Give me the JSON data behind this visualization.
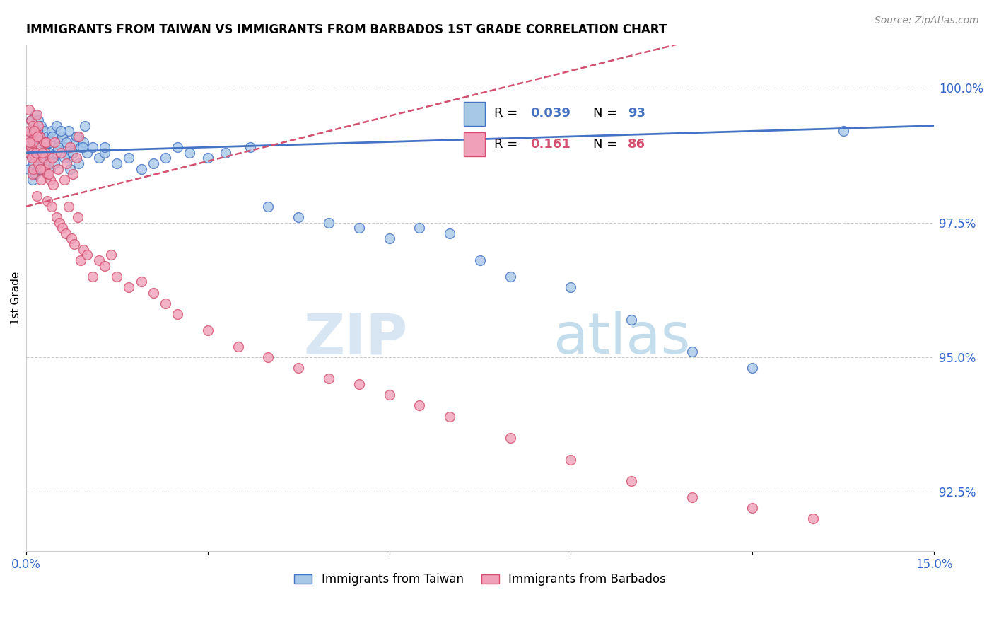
{
  "title": "IMMIGRANTS FROM TAIWAN VS IMMIGRANTS FROM BARBADOS 1ST GRADE CORRELATION CHART",
  "source": "Source: ZipAtlas.com",
  "ylabel": "1st Grade",
  "yticks": [
    92.5,
    95.0,
    97.5,
    100.0
  ],
  "ytick_labels": [
    "92.5%",
    "95.0%",
    "97.5%",
    "100.0%"
  ],
  "xmin": 0.0,
  "xmax": 15.0,
  "ymin": 91.4,
  "ymax": 100.8,
  "taiwan_color": "#A8C8E8",
  "barbados_color": "#F0A0B8",
  "taiwan_line_color": "#4472C4",
  "barbados_line_color": "#D45070",
  "legend_taiwan_label": "Immigrants from Taiwan",
  "legend_barbados_label": "Immigrants from Barbados",
  "taiwan_x": [
    0.05,
    0.05,
    0.05,
    0.08,
    0.08,
    0.1,
    0.1,
    0.1,
    0.12,
    0.12,
    0.15,
    0.15,
    0.15,
    0.18,
    0.18,
    0.2,
    0.2,
    0.2,
    0.22,
    0.25,
    0.25,
    0.28,
    0.3,
    0.3,
    0.32,
    0.35,
    0.35,
    0.38,
    0.4,
    0.4,
    0.42,
    0.45,
    0.5,
    0.5,
    0.55,
    0.6,
    0.65,
    0.7,
    0.7,
    0.75,
    0.8,
    0.85,
    0.9,
    0.95,
    1.0,
    1.1,
    1.2,
    1.3,
    1.5,
    1.7,
    1.9,
    2.1,
    2.3,
    2.5,
    2.7,
    3.0,
    3.3,
    3.7,
    4.0,
    4.5,
    5.0,
    5.5,
    6.0,
    6.5,
    7.0,
    7.5,
    8.0,
    9.0,
    10.0,
    11.0,
    12.0,
    13.5,
    0.06,
    0.09,
    0.13,
    0.16,
    0.19,
    0.23,
    0.27,
    0.33,
    0.37,
    0.43,
    0.47,
    0.53,
    0.57,
    0.63,
    0.67,
    0.73,
    0.77,
    0.83,
    0.87,
    0.93,
    0.97,
    1.3
  ],
  "taiwan_y": [
    99.2,
    98.8,
    98.5,
    99.4,
    98.9,
    99.1,
    98.7,
    98.3,
    99.3,
    98.6,
    99.5,
    99.0,
    98.4,
    99.2,
    98.7,
    99.4,
    98.9,
    98.5,
    99.1,
    99.3,
    98.8,
    98.6,
    99.2,
    98.7,
    98.9,
    99.1,
    98.6,
    98.8,
    99.0,
    98.5,
    99.2,
    98.7,
    99.3,
    98.8,
    99.0,
    99.1,
    98.9,
    99.2,
    98.7,
    98.8,
    99.0,
    99.1,
    98.9,
    99.0,
    98.8,
    98.9,
    98.7,
    98.8,
    98.6,
    98.7,
    98.5,
    98.6,
    98.7,
    98.9,
    98.8,
    98.7,
    98.8,
    98.9,
    97.8,
    97.6,
    97.5,
    97.4,
    97.2,
    97.4,
    97.3,
    96.8,
    96.5,
    96.3,
    95.7,
    95.1,
    94.8,
    99.2,
    99.0,
    98.8,
    99.1,
    98.9,
    99.2,
    98.7,
    98.5,
    99.0,
    98.8,
    99.1,
    98.6,
    98.9,
    99.2,
    98.7,
    99.0,
    98.5,
    98.8,
    99.1,
    98.6,
    98.9,
    99.3,
    98.9
  ],
  "barbados_x": [
    0.02,
    0.05,
    0.05,
    0.05,
    0.08,
    0.08,
    0.1,
    0.1,
    0.1,
    0.12,
    0.12,
    0.15,
    0.15,
    0.18,
    0.18,
    0.2,
    0.2,
    0.22,
    0.25,
    0.25,
    0.28,
    0.3,
    0.3,
    0.32,
    0.35,
    0.35,
    0.38,
    0.4,
    0.42,
    0.45,
    0.5,
    0.55,
    0.6,
    0.65,
    0.7,
    0.75,
    0.8,
    0.85,
    0.9,
    0.95,
    1.0,
    1.1,
    1.2,
    1.3,
    1.4,
    1.5,
    1.7,
    1.9,
    2.1,
    2.3,
    2.5,
    3.0,
    3.5,
    4.0,
    4.5,
    5.0,
    5.5,
    6.0,
    6.5,
    7.0,
    8.0,
    9.0,
    10.0,
    11.0,
    12.0,
    13.0,
    0.06,
    0.09,
    0.13,
    0.16,
    0.19,
    0.23,
    0.27,
    0.33,
    0.37,
    0.43,
    0.47,
    0.53,
    0.57,
    0.63,
    0.67,
    0.73,
    0.77,
    0.83,
    0.87
  ],
  "barbados_y": [
    99.1,
    99.6,
    99.2,
    98.8,
    99.4,
    98.9,
    99.3,
    98.8,
    98.4,
    99.0,
    98.5,
    99.2,
    98.7,
    99.5,
    98.0,
    99.3,
    98.6,
    99.1,
    98.9,
    98.3,
    98.7,
    99.0,
    98.5,
    98.8,
    98.4,
    97.9,
    98.6,
    98.3,
    97.8,
    98.2,
    97.6,
    97.5,
    97.4,
    97.3,
    97.8,
    97.2,
    97.1,
    97.6,
    96.8,
    97.0,
    96.9,
    96.5,
    96.8,
    96.7,
    96.9,
    96.5,
    96.3,
    96.4,
    96.2,
    96.0,
    95.8,
    95.5,
    95.2,
    95.0,
    94.8,
    94.6,
    94.5,
    94.3,
    94.1,
    93.9,
    93.5,
    93.1,
    92.7,
    92.4,
    92.2,
    92.0,
    99.0,
    98.7,
    99.2,
    98.8,
    99.1,
    98.5,
    98.8,
    99.0,
    98.4,
    98.7,
    99.0,
    98.5,
    98.8,
    98.3,
    98.6,
    98.9,
    98.4,
    98.7,
    99.1
  ]
}
